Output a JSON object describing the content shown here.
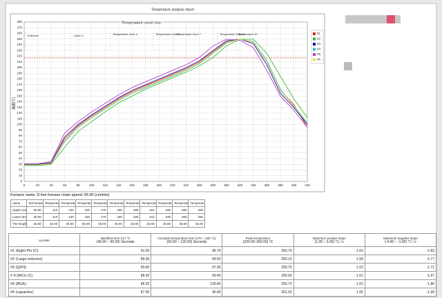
{
  "header": {
    "title": "Temperature analysis report"
  },
  "chart_data": {
    "type": "line",
    "title": "Temperature curve cha.",
    "y_label": "温度(℃)",
    "x": [
      0,
      20,
      40,
      60,
      80,
      100,
      120,
      140,
      160,
      180,
      200,
      220,
      240,
      260,
      280,
      300,
      320,
      340,
      360,
      380,
      400,
      420
    ],
    "series": [
      {
        "name": "#1",
        "color": "#d8262e",
        "values": [
          30,
          30,
          32,
          75,
          98,
          115,
          130,
          145,
          158,
          168,
          178,
          188,
          198,
          210,
          228,
          245,
          250,
          245,
          210,
          160,
          135,
          95
        ]
      },
      {
        "name": "#2",
        "color": "#3cb83c",
        "values": [
          28,
          28,
          30,
          60,
          88,
          105,
          122,
          138,
          150,
          162,
          172,
          182,
          192,
          203,
          218,
          238,
          250,
          250,
          225,
          185,
          145,
          112
        ]
      },
      {
        "name": "#3",
        "color": "#1a1a9a",
        "values": [
          30,
          30,
          33,
          78,
          100,
          117,
          132,
          147,
          160,
          170,
          180,
          190,
          200,
          212,
          230,
          247,
          250,
          242,
          205,
          155,
          130,
          100
        ]
      },
      {
        "name": "#4",
        "color": "#27b5c8",
        "values": [
          29,
          29,
          31,
          70,
          95,
          112,
          127,
          142,
          155,
          165,
          175,
          185,
          195,
          207,
          225,
          243,
          250,
          246,
          212,
          162,
          132,
          102
        ]
      },
      {
        "name": "#5",
        "color": "#b43cc8",
        "values": [
          31,
          31,
          35,
          85,
          105,
          122,
          137,
          152,
          165,
          175,
          185,
          195,
          205,
          218,
          238,
          250,
          248,
          235,
          195,
          150,
          125,
          95
        ]
      },
      {
        "name": "#6",
        "color": "#e8e04a",
        "values": [
          29,
          29,
          31,
          72,
          96,
          113,
          128,
          143,
          156,
          166,
          176,
          186,
          196,
          208,
          226,
          244,
          250,
          245,
          210,
          160,
          133,
          104
        ]
      }
    ],
    "reference_line": {
      "value": 217,
      "color": "#e03030"
    },
    "annotations": [
      "Entrance",
      "- Zone 2 -",
      "Temperature Zone 4",
      "Temperature zone 6",
      "Temperature Zone 7",
      "Temperature Zone 9",
      "Temperature IO"
    ],
    "xlim": [
      0,
      420
    ],
    "xticks": [
      0,
      20,
      40,
      60,
      80,
      100,
      120,
      140,
      160,
      180,
      200,
      220,
      240,
      260,
      280,
      300,
      320,
      340,
      360,
      380,
      400,
      420
    ],
    "ylim": [
      0,
      280
    ],
    "yticks": [
      0,
      10,
      20,
      30,
      40,
      50,
      60,
      70,
      80,
      90,
      100,
      110,
      120,
      130,
      140,
      150,
      160,
      170,
      180,
      190,
      200,
      210,
      220,
      230,
      240,
      250,
      260,
      270,
      280
    ],
    "grid": true
  },
  "furnace": "Furnace name: D line furnace chain speed: 65.00 (cm/min)",
  "zone_table": {
    "columns": [
      "name",
      "Set temperature zone 1",
      "Temperature zone 2",
      "Temperature zone 3",
      "Temperature zone 4",
      "Temperature zone 5",
      "Temperature zone 6",
      "Temperature zone 7",
      "Temperature zone 8",
      "Temperature zone 9",
      "Temperature zone 10",
      "Temperature zone 11"
    ],
    "rows": [
      [
        "Upper scale zone",
        "30.00",
        "110",
        "130",
        "150",
        "170",
        "180",
        "195",
        "210",
        "235",
        "265",
        "250"
      ],
      [
        "Lower temperature zone",
        "30.00",
        "110",
        "130",
        "150",
        "170",
        "180",
        "195",
        "210",
        "235",
        "265",
        "250"
      ],
      [
        "The length of the temperature zone",
        "45.00",
        "45.00",
        "45.00",
        "45.00",
        "45.00",
        "45.00",
        "45.00",
        "45.00",
        "45.00",
        "45.00",
        "45.00"
      ]
    ]
  },
  "probe_table": {
    "columns": [
      {
        "title": "a probe"
      },
      {
        "title": "Backflow time 217 °C",
        "range": "(40.00 ~ 90.00) Seconds"
      },
      {
        "title": "Constant temperature time (170 ~ 200 °C)",
        "range": "(60.00 ~ 120.00) Seconds"
      },
      {
        "title": "Peak temperature",
        "range": "(230.00~260.00) ℃"
      },
      {
        "title": "Maximum positive slope",
        "range": "(1.00 ~ 3.00) °C / s"
      },
      {
        "title": "Maximum negative slope",
        "range": "(-4.00 ~ -1.00) °C / s"
      }
    ],
    "rows": [
      [
        "#1 (Eight Pin IC)",
        "91.00",
        "96.70",
        "250.70",
        "1.63",
        "-1.83"
      ],
      [
        "#2 (Large inductor)",
        "89.30",
        "99.50",
        "250.10",
        "1.58",
        "-1.77"
      ],
      [
        "#3 (QFN)",
        "90.60",
        "97.30",
        "250.70",
        "1.63",
        "-1.71"
      ],
      [
        "# 4 (MCU IC)",
        "88.30",
        "99.40",
        "250.90",
        "1.61",
        "-1.97"
      ],
      [
        "#5 (BGA)",
        "86.20",
        "100.40",
        "250.70",
        "1.61",
        "-1.86"
      ],
      [
        "#6 (capacitor)",
        "87.00",
        "96.40",
        "251.30",
        "1.65",
        "-1.99"
      ]
    ]
  }
}
